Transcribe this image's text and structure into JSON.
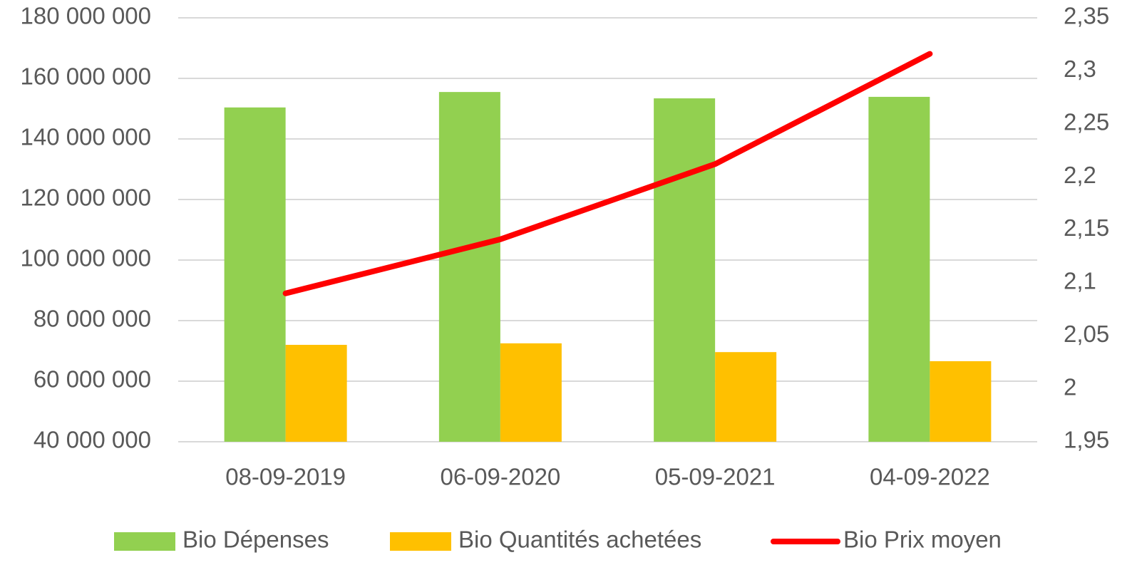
{
  "chart_data": {
    "type": "bar_line",
    "categories": [
      "08-09-2019",
      "06-09-2020",
      "05-09-2021",
      "04-09-2022"
    ],
    "series": [
      {
        "name": "Bio Dépenses",
        "color": "#92d050",
        "type": "bar",
        "values": [
          150400000,
          155500000,
          153400000,
          153900000
        ]
      },
      {
        "name": "Bio Quantités achetées",
        "color": "#ffc000",
        "type": "bar",
        "values": [
          72000000,
          72500000,
          69600000,
          66600000
        ]
      },
      {
        "name": "Bio Prix moyen",
        "color": "#ff0000",
        "type": "line",
        "axis": "y2",
        "values": [
          2.09,
          2.141,
          2.212,
          2.316
        ]
      }
    ],
    "ylim": [
      40000000,
      180000000
    ],
    "yticks": [
      {
        "value": 40000000,
        "label": "40 000 000"
      },
      {
        "value": 60000000,
        "label": "60 000 000"
      },
      {
        "value": 80000000,
        "label": "80 000 000"
      },
      {
        "value": 100000000,
        "label": "100 000 000"
      },
      {
        "value": 120000000,
        "label": "120 000 000"
      },
      {
        "value": 140000000,
        "label": "140 000 000"
      },
      {
        "value": 160000000,
        "label": "160 000 000"
      },
      {
        "value": 180000000,
        "label": "180 000 000"
      }
    ],
    "y2lim": [
      1.95,
      2.35
    ],
    "y2ticks": [
      {
        "value": 1.95,
        "label": "1,95"
      },
      2,
      {
        "value": 2.05,
        "label": "2,05"
      },
      {
        "value": 2.1,
        "label": "2,1"
      },
      {
        "value": 2.15,
        "label": "2,15"
      },
      {
        "value": 2.2,
        "label": "2,2"
      },
      {
        "value": 2.25,
        "label": "2,25"
      },
      {
        "value": 2.3,
        "label": "2,3"
      },
      {
        "value": 2.35,
        "label": "2,35"
      }
    ],
    "grid": true,
    "legend": "bottom"
  }
}
